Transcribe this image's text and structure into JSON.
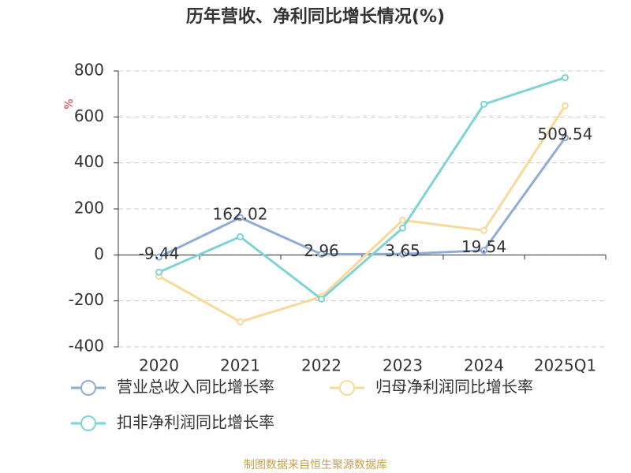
{
  "chart_data": {
    "type": "line",
    "title": "历年营收、净利同比增长情况(%)",
    "y_unit": "%",
    "categories": [
      "2020",
      "2021",
      "2022",
      "2023",
      "2024",
      "2025Q1"
    ],
    "series": [
      {
        "name": "营业总收入同比增长率",
        "color": "#8eacd8",
        "values": [
          -9.44,
          162.02,
          2.96,
          3.65,
          19.54,
          509.54
        ],
        "data_labels": true
      },
      {
        "name": "归母净利润同比增长率",
        "color": "#f9d99a",
        "values": [
          -93,
          -291,
          -182,
          151,
          106,
          648
        ]
      },
      {
        "name": "扣非净利润同比增长率",
        "color": "#7fd3d3",
        "values": [
          -75,
          79,
          -192,
          117,
          655,
          771
        ]
      }
    ],
    "ylim": [
      -400,
      800
    ],
    "yticks": [
      -400,
      -200,
      0,
      200,
      400,
      600,
      800
    ],
    "grid": true,
    "legend": "bottom",
    "source": "制图数据来自恒生聚源数据库"
  }
}
